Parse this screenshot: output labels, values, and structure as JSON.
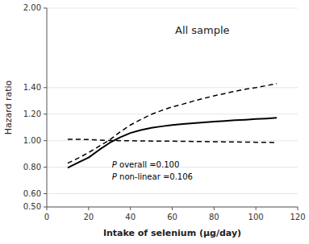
{
  "chart_data": {
    "type": "line",
    "title": "All sample",
    "x_label": "Intake of selenium (μg/day)",
    "y_label": "Hazard ratio",
    "xlim": [
      0,
      120
    ],
    "ylim": [
      0.5,
      2.0
    ],
    "xticks": [
      0,
      20,
      40,
      60,
      80,
      100,
      120
    ],
    "yticks": [
      {
        "value": 0.5,
        "label": "0.50"
      },
      {
        "value": 0.6,
        "label": "0.60"
      },
      {
        "value": 0.8,
        "label": "0.80"
      },
      {
        "value": 1.0,
        "label": "1.00"
      },
      {
        "value": 1.2,
        "label": "1.20"
      },
      {
        "value": 1.4,
        "label": "1.40"
      },
      {
        "value": 2.0,
        "label": "2.00"
      }
    ],
    "annotations": [
      "P overall =0.100",
      "P non-linear =0.106"
    ],
    "x": [
      10,
      15,
      20,
      25,
      30,
      35,
      40,
      45,
      50,
      55,
      60,
      65,
      70,
      75,
      80,
      85,
      90,
      95,
      100,
      105,
      110
    ],
    "series": [
      {
        "color": "#000000",
        "line_style": "solid",
        "values": [
          0.795,
          0.835,
          0.873,
          0.93,
          0.983,
          1.025,
          1.058,
          1.08,
          1.097,
          1.108,
          1.118,
          1.125,
          1.132,
          1.138,
          1.144,
          1.149,
          1.154,
          1.158,
          1.163,
          1.167,
          1.172
        ]
      },
      {
        "color": "#000000",
        "line_style": "dashed",
        "values": [
          0.83,
          0.868,
          0.91,
          0.958,
          1.005,
          1.065,
          1.118,
          1.16,
          1.198,
          1.228,
          1.255,
          1.275,
          1.298,
          1.318,
          1.338,
          1.355,
          1.372,
          1.388,
          1.4,
          1.415,
          1.43
        ]
      },
      {
        "color": "#000000",
        "line_style": "dashed",
        "values": [
          1.01,
          1.01,
          1.008,
          1.005,
          1.001,
          1.0,
          0.999,
          0.998,
          0.997,
          0.997,
          0.996,
          0.995,
          0.994,
          0.993,
          0.992,
          0.991,
          0.99,
          0.989,
          0.988,
          0.987,
          0.986
        ]
      }
    ]
  }
}
